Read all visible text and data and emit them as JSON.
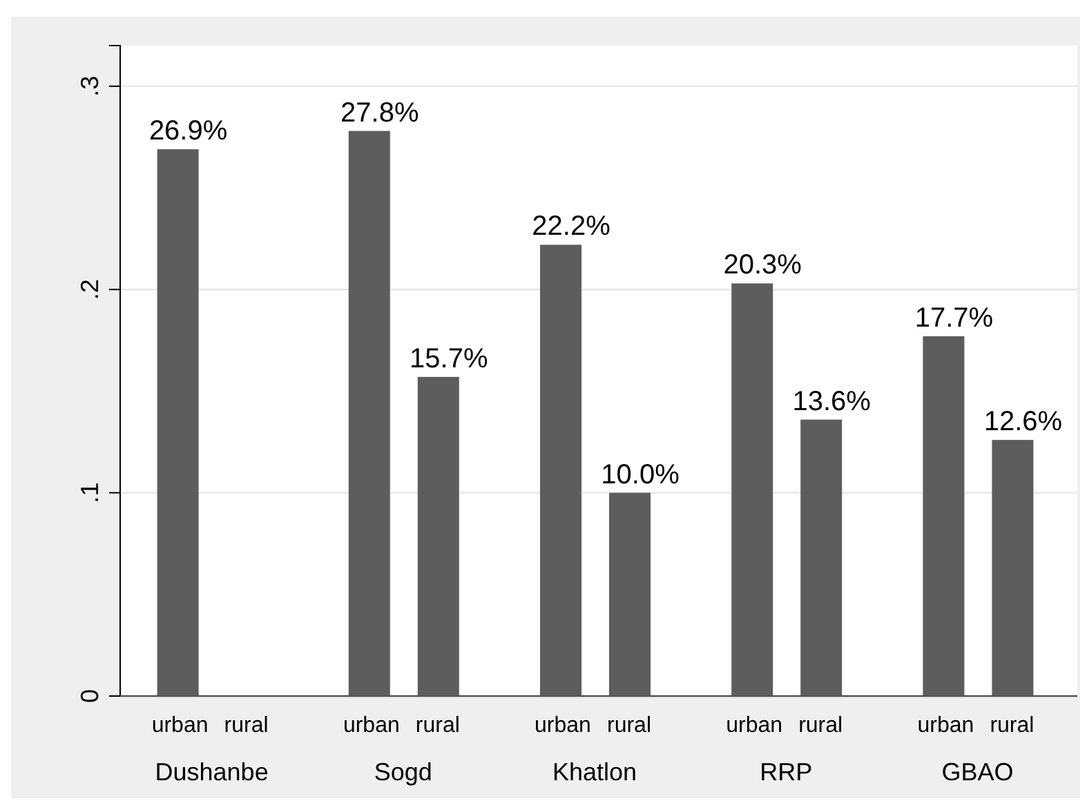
{
  "chart_data": {
    "type": "bar",
    "categories": [
      "Dushanbe",
      "Sogd",
      "Khatlon",
      "RRP",
      "GBAO"
    ],
    "series": [
      {
        "name": "urban",
        "color": "#5d5d5d",
        "values": [
          0.269,
          0.278,
          0.222,
          0.203,
          0.177
        ],
        "value_labels": [
          "26.9%",
          "27.8%",
          "22.2%",
          "20.3%",
          "17.7%"
        ]
      },
      {
        "name": "rural",
        "color": "#5d5d5d",
        "values": [
          null,
          0.157,
          0.1,
          0.136,
          0.126
        ],
        "value_labels": [
          null,
          "15.7%",
          "10.0%",
          "13.6%",
          "12.6%"
        ]
      }
    ],
    "ylim": [
      0,
      0.32
    ],
    "yticks": [
      0,
      {
        "value": 0.1,
        "label": ".1"
      },
      {
        "value": 0.2,
        "label": ".2"
      },
      {
        "value": 0.3,
        "label": ".3"
      }
    ],
    "grid": "y"
  }
}
